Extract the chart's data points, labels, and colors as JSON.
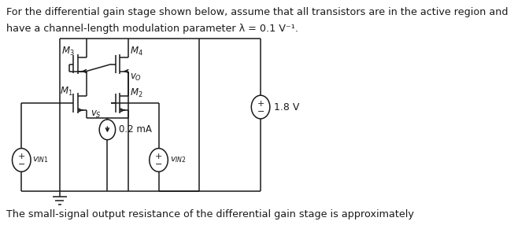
{
  "text_top_line1": "For the differential gain stage shown below, assume that all transistors are in the active region and",
  "text_top_line2": "have a channel-length modulation parameter λ = 0.1 V⁻¹.",
  "text_bottom": "The small-signal output resistance of the differential gain stage is approximately",
  "bg_color": "#ffffff",
  "line_color": "#1a1a1a",
  "text_color": "#1a1a1a",
  "font_size": 10,
  "M3_label": "M$_3$",
  "M4_label": "M$_4$",
  "M1_label": "M$_1$",
  "M2_label": "M$_2$",
  "Vo_label": "$v_O$",
  "Vs_label": "$v_S$",
  "VIN1_label": "$v_{IN1}$",
  "VIN2_label": "$v_{IN2}$",
  "Ibias_label": "0.2 mA",
  "VDD_label": "1.8 V"
}
